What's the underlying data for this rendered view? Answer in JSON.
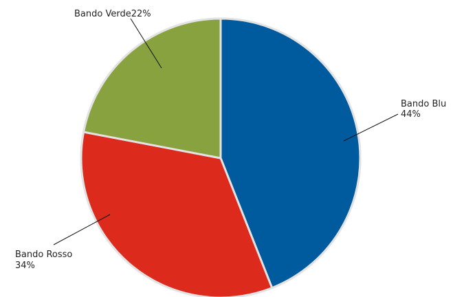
{
  "chart_data": {
    "type": "pie",
    "title": "",
    "slices": [
      {
        "name": "Bando Blu",
        "label": "Bando Blu",
        "value_label": "44%",
        "value": 44,
        "color": "#005a9e"
      },
      {
        "name": "Bando Rosso",
        "label": "Bando Rosso",
        "value_label": "34%",
        "value": 34,
        "color": "#dc2a1c"
      },
      {
        "name": "Bando Verde",
        "label": "Bando Verde",
        "value_label": "22%",
        "value": 22,
        "color": "#87a23f"
      }
    ]
  }
}
